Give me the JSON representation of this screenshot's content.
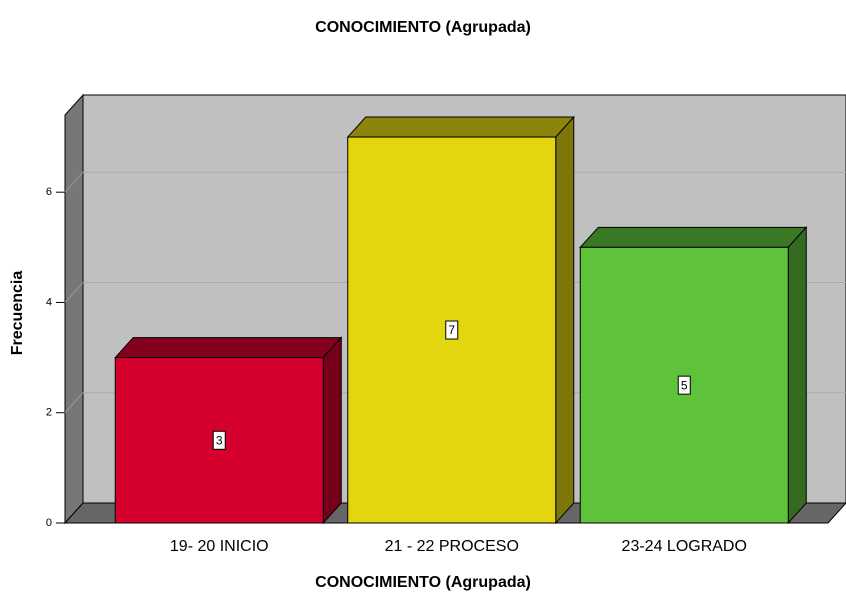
{
  "chart_data": {
    "type": "bar3d",
    "title": "CONOCIMIENTO  (Agrupada)",
    "x_label": "CONOCIMIENTO  (Agrupada)",
    "y_label": "Frecuencia",
    "categories": [
      "19- 20 INICIO",
      "21 - 22 PROCESO",
      "23-24 LOGRADO"
    ],
    "values": [
      3,
      7,
      5
    ],
    "colors": [
      "#d6002f",
      "#e3d611",
      "#5ec23b"
    ],
    "ylim": [
      0,
      7.4
    ],
    "yticks": [
      0,
      2,
      4,
      6
    ],
    "grid": true
  }
}
